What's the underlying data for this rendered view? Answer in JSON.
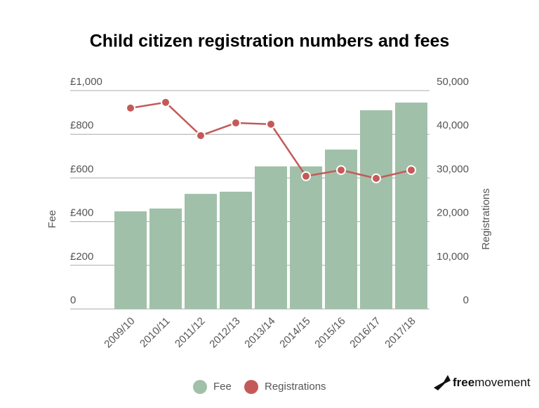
{
  "chart_data": {
    "type": "bar_line",
    "title": "Child citizen registration numbers and fees",
    "categories": [
      "2009/10",
      "2010/11",
      "2011/12",
      "2012/13",
      "2013/14",
      "2014/15",
      "2015/16",
      "2016/17",
      "2017/18"
    ],
    "series": [
      {
        "name": "Fee",
        "color": "#a1c0a9",
        "type": "bar",
        "values": [
          447,
          460,
          527,
          537,
          653,
          653,
          730,
          910,
          945
        ]
      },
      {
        "name": "Registrations",
        "color": "#c45a58",
        "type": "line",
        "axis": "y2",
        "values": [
          46000,
          47300,
          39700,
          42600,
          42300,
          30400,
          31800,
          29900,
          31800
        ]
      }
    ],
    "ylabel": "Fee",
    "y2label": "Registrations",
    "ylim": [
      0,
      1000
    ],
    "yticks": [
      0,
      {
        "value": 200,
        "label": "£200"
      },
      {
        "value": 400,
        "label": "£400"
      },
      {
        "value": 600,
        "label": "£600"
      },
      {
        "value": 800,
        "label": "£800"
      },
      {
        "value": 1000,
        "label": "£1,000"
      }
    ],
    "y2lim": [
      0,
      50000
    ],
    "y2ticks": [
      0,
      {
        "value": 10000,
        "label": "10,000"
      },
      {
        "value": 20000,
        "label": "20,000"
      },
      {
        "value": 30000,
        "label": "30,000"
      },
      {
        "value": 40000,
        "label": "40,000"
      },
      {
        "value": 50000,
        "label": "50,000"
      }
    ],
    "grid": true,
    "legend": "bottom"
  },
  "brand": [
    "free",
    "movement"
  ]
}
